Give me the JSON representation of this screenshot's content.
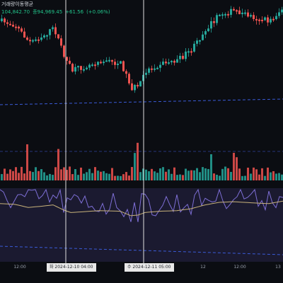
{
  "header": {
    "title": "거래량이동평균",
    "ohlc": [
      "104,842.70",
      "종94,969.45",
      "+61.56",
      "(+0.06%)"
    ]
  },
  "time_axis": {
    "ticks": [
      "12:00",
      "12",
      "12:00",
      "13"
    ]
  },
  "crosshairs": [
    {
      "label": "화 2024-12-10   04:00"
    },
    {
      "label": "수 2024-12-11   05:00"
    }
  ],
  "colors": {
    "background": "#0b0d12",
    "up": "#26a69a",
    "down": "#ef5350",
    "rsi_line": "#7e6fd6",
    "rsi_ma": "#c8b27a",
    "rsi_band": "#2a2748",
    "trend_line": "#3b5bd8",
    "crosshair": "#e0e0e0"
  }
}
